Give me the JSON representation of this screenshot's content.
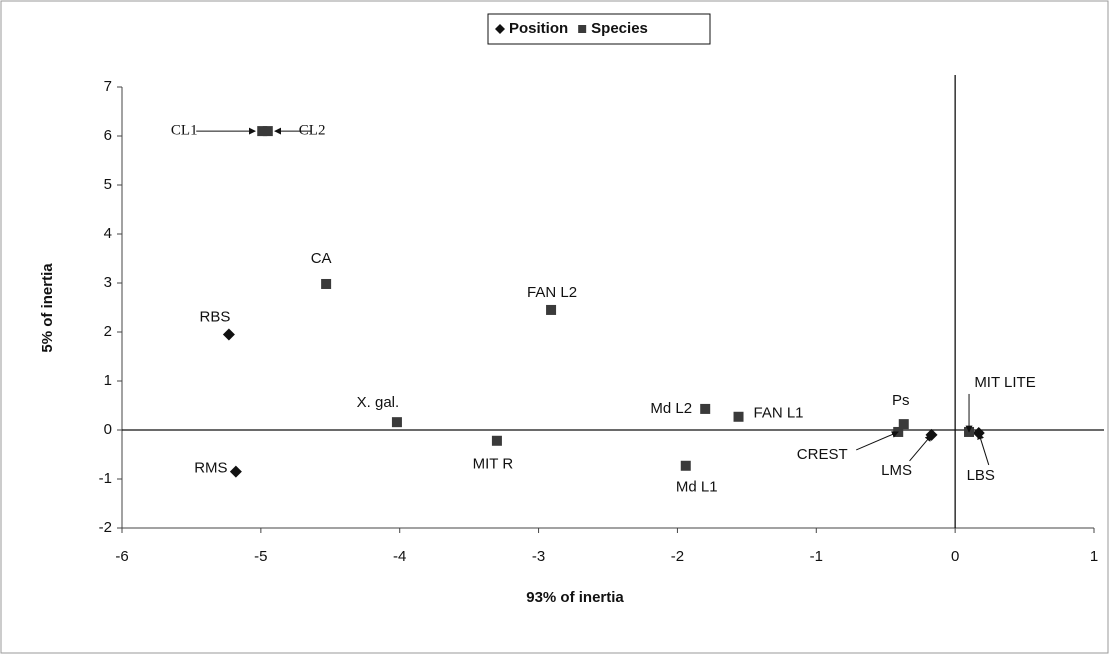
{
  "chart_data": {
    "type": "scatter",
    "x_label": "93% of inertia",
    "y_label": "5% of inertia",
    "xlim": [
      -6,
      1
    ],
    "ylim": [
      -2,
      7
    ],
    "xticks": [
      -6,
      -5,
      -4,
      -3,
      -2,
      -1,
      0,
      1
    ],
    "yticks": [
      -2,
      -1,
      0,
      1,
      2,
      3,
      4,
      5,
      6,
      7
    ],
    "legend": "top",
    "series": [
      {
        "name": "Position",
        "color": "#111111",
        "marker": "diamond",
        "labels": [
          "RBS",
          "RMS",
          "LMS",
          "LBS"
        ],
        "x": [
          -5.23,
          -5.18,
          -0.17,
          0.17
        ],
        "values": [
          1.95,
          -0.85,
          -0.1,
          -0.06
        ]
      },
      {
        "name": "Species",
        "color": "#3a3a3a",
        "marker": "square",
        "labels": [
          "CL1",
          "CL2",
          "CA",
          "FAN L2",
          "X. gal.",
          "MIT R",
          "Md L2",
          "FAN L1",
          "Md L1",
          "Ps",
          "CREST",
          "MIT LITE"
        ],
        "x": [
          -4.99,
          -4.95,
          -4.53,
          -2.91,
          -4.02,
          -3.3,
          -1.8,
          -1.56,
          -1.94,
          -0.37,
          -0.41,
          0.1
        ],
        "values": [
          6.1,
          6.1,
          2.98,
          2.45,
          0.16,
          -0.22,
          0.43,
          0.27,
          -0.73,
          0.12,
          -0.04,
          -0.04
        ]
      }
    ]
  }
}
